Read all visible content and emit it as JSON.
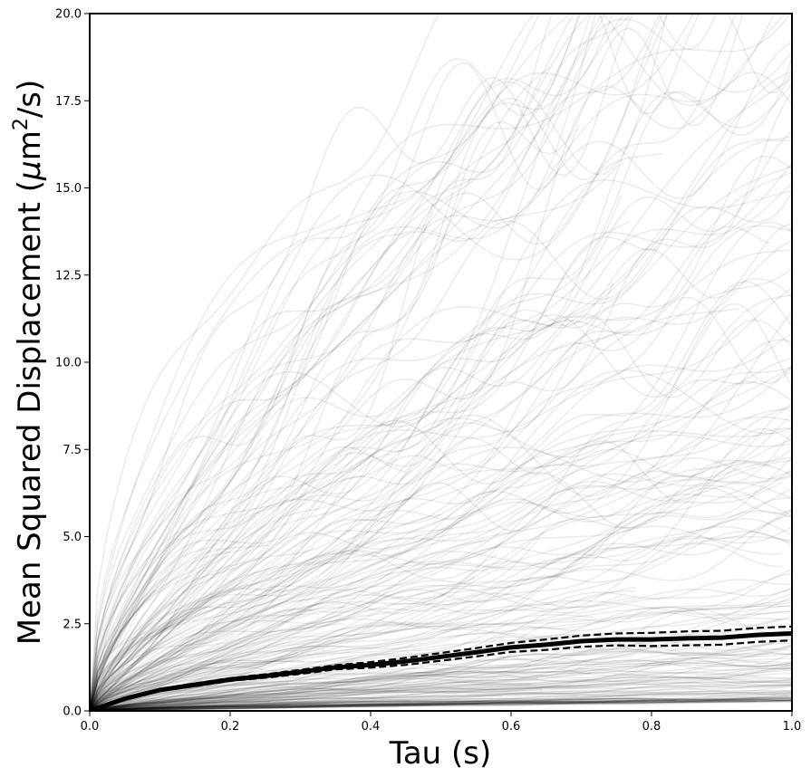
{
  "chart_data": {
    "type": "line",
    "xlabel": "Tau (s)",
    "ylabel_parts": [
      "Mean Squared Displacement (",
      "μ",
      "m",
      "2",
      "/s)"
    ],
    "xlim": [
      0.0,
      1.0
    ],
    "ylim": [
      0.0,
      20.0
    ],
    "x_ticks": [
      "0.0",
      "0.2",
      "0.4",
      "0.6",
      "0.8",
      "1.0"
    ],
    "y_ticks": [
      "0.0",
      "2.5",
      "5.0",
      "7.5",
      "10.0",
      "12.5",
      "15.0",
      "17.5",
      "20.0"
    ],
    "grid": false,
    "colors": {
      "individual": "#000000",
      "mean": "#000000",
      "ci": "#000000"
    },
    "mean_series": {
      "x": [
        0.0,
        0.05,
        0.1,
        0.15,
        0.2,
        0.25,
        0.3,
        0.35,
        0.4,
        0.45,
        0.5,
        0.55,
        0.6,
        0.65,
        0.7,
        0.75,
        0.8,
        0.85,
        0.9,
        0.95,
        1.0
      ],
      "y": [
        0.0,
        0.35,
        0.6,
        0.75,
        0.9,
        1.0,
        1.12,
        1.25,
        1.32,
        1.42,
        1.55,
        1.68,
        1.82,
        1.9,
        2.0,
        2.05,
        2.05,
        2.08,
        2.1,
        2.18,
        2.22
      ]
    },
    "ci_upper": {
      "x": [
        0.0,
        0.05,
        0.1,
        0.15,
        0.2,
        0.25,
        0.3,
        0.35,
        0.4,
        0.45,
        0.5,
        0.55,
        0.6,
        0.65,
        0.7,
        0.75,
        0.8,
        0.85,
        0.9,
        0.95,
        1.0
      ],
      "y": [
        0.0,
        0.38,
        0.63,
        0.79,
        0.94,
        1.05,
        1.18,
        1.31,
        1.4,
        1.52,
        1.66,
        1.8,
        1.95,
        2.05,
        2.16,
        2.22,
        2.24,
        2.28,
        2.3,
        2.38,
        2.42
      ]
    },
    "ci_lower": {
      "x": [
        0.0,
        0.05,
        0.1,
        0.15,
        0.2,
        0.25,
        0.3,
        0.35,
        0.4,
        0.45,
        0.5,
        0.55,
        0.6,
        0.65,
        0.7,
        0.75,
        0.8,
        0.85,
        0.9,
        0.95,
        1.0
      ],
      "y": [
        0.0,
        0.32,
        0.57,
        0.71,
        0.86,
        0.95,
        1.06,
        1.19,
        1.24,
        1.32,
        1.44,
        1.56,
        1.69,
        1.75,
        1.84,
        1.88,
        1.86,
        1.88,
        1.9,
        1.98,
        2.02
      ]
    },
    "individual_tracks_summary": {
      "count_approx": 300,
      "opacity": 0.08,
      "typical_end_values": [
        0.5,
        1.0,
        1.5,
        2.0,
        2.5,
        3.0,
        4.0,
        5.0,
        6.5,
        8.0,
        10.0,
        12.5,
        15.0,
        20.0
      ]
    }
  }
}
